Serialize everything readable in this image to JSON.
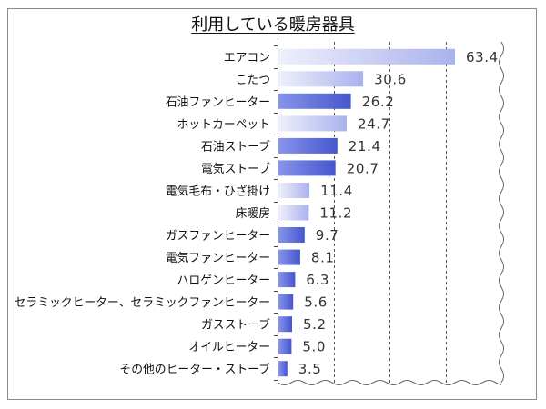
{
  "chart_data": {
    "type": "bar",
    "orientation": "horizontal",
    "title": "利用している暖房器具",
    "categories": [
      "エアコン",
      "こたつ",
      "石油ファンヒーター",
      "ホットカーペット",
      "石油ストーブ",
      "電気ストーブ",
      "電気毛布・ひざ掛け",
      "床暖房",
      "ガスファンヒーター",
      "電気ファンヒーター",
      "ハロゲンヒーター",
      "セラミックヒーター、セラミックファンヒーター",
      "ガスストーブ",
      "オイルヒーター",
      "その他のヒーター・ストーブ"
    ],
    "values": [
      63.4,
      30.6,
      26.2,
      24.7,
      21.4,
      20.7,
      11.4,
      11.2,
      9.7,
      8.1,
      6.3,
      5.6,
      5.2,
      5.0,
      3.5
    ],
    "data_labels": [
      "63.4",
      "30.6",
      "26.2",
      "24.7",
      "21.4",
      "20.7",
      "11.4",
      "11.2",
      "9.7",
      "8.1",
      "6.3",
      "5.6",
      "5.2",
      "5.0",
      "3.5"
    ],
    "xlim": [
      0,
      80
    ],
    "grid": true,
    "grid_style": "dashed",
    "gridlines": [
      20,
      40,
      60
    ],
    "legend": "none",
    "bar_tones": [
      "light",
      "light",
      "dark",
      "light",
      "dark",
      "dark",
      "light",
      "light",
      "dark",
      "dark",
      "dark",
      "dark",
      "dark",
      "dark",
      "dark"
    ],
    "colors": {
      "bar_light_start": "#eef0fc",
      "bar_light_end": "#aab2ec",
      "bar_dark_start": "#8794ea",
      "bar_dark_end": "#4656cd",
      "gridline": "#555555",
      "axis": "#444444",
      "edge": "#666666"
    }
  }
}
